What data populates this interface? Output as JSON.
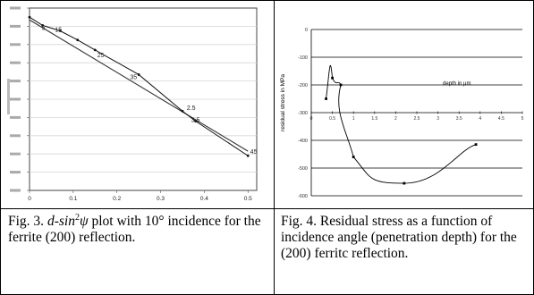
{
  "figure3": {
    "caption": {
      "prefix": "Fig. 3. ",
      "d": "d",
      "sin": "-sin",
      "exp": "2",
      "psi": "ψ",
      "rest": " plot with 10° incidence for the ferrite (200) reflection."
    },
    "chart_data": {
      "type": "line",
      "xlabel": "",
      "ylabel": "",
      "xticks": [
        "0",
        "0.1",
        "0.2",
        "0.3",
        "0.4",
        "0.5"
      ],
      "xlim": [
        0,
        0.52
      ],
      "series": [
        {
          "x": [
            0,
            0.03,
            0.07,
            0.11,
            0.15,
            0.25,
            0.35,
            0.38,
            0.5
          ],
          "y": [
            9.5,
            9.05,
            8.75,
            8.25,
            7.7,
            6.35,
            4.35,
            3.8,
            1.9
          ]
        },
        {
          "x": [
            0,
            0.5
          ],
          "y": [
            9.35,
            2.15
          ]
        }
      ],
      "annotations": [
        {
          "text": "5",
          "x": 0.028,
          "y": 8.8
        },
        {
          "text": "15",
          "x": 0.058,
          "y": 8.7
        },
        {
          "text": "25",
          "x": 0.155,
          "y": 7.3
        },
        {
          "text": "35",
          "x": 0.23,
          "y": 6.1
        },
        {
          "text": "2.5",
          "x": 0.36,
          "y": 4.4
        },
        {
          "text": "3.5",
          "x": 0.37,
          "y": 3.75
        },
        {
          "text": "45",
          "x": 0.505,
          "y": 2.0
        }
      ]
    }
  },
  "figure4": {
    "caption": "Fig. 4. Residual stress as a function of incidence angle (penetration depth) for the (200) ferritc reflection.",
    "chart_data": {
      "type": "line",
      "xlabel": "depth in µm",
      "ylabel": "residual stress in MPa",
      "xticks": [
        "0",
        "0.5",
        "1",
        "1.5",
        "2",
        "2.5",
        "3",
        "3.5",
        "4",
        "4.5",
        "5"
      ],
      "yticks": [
        "0",
        "-100",
        "-200",
        "-300",
        "-400",
        "-500",
        "-600"
      ],
      "xlim": [
        0,
        5
      ],
      "ylim": [
        -600,
        0
      ],
      "points": [
        {
          "x": 0.35,
          "y": -250
        },
        {
          "x": 0.5,
          "y": -175
        },
        {
          "x": 0.7,
          "y": -200
        },
        {
          "x": 1.0,
          "y": -460
        },
        {
          "x": 2.2,
          "y": -555
        },
        {
          "x": 3.9,
          "y": -415
        }
      ]
    }
  }
}
